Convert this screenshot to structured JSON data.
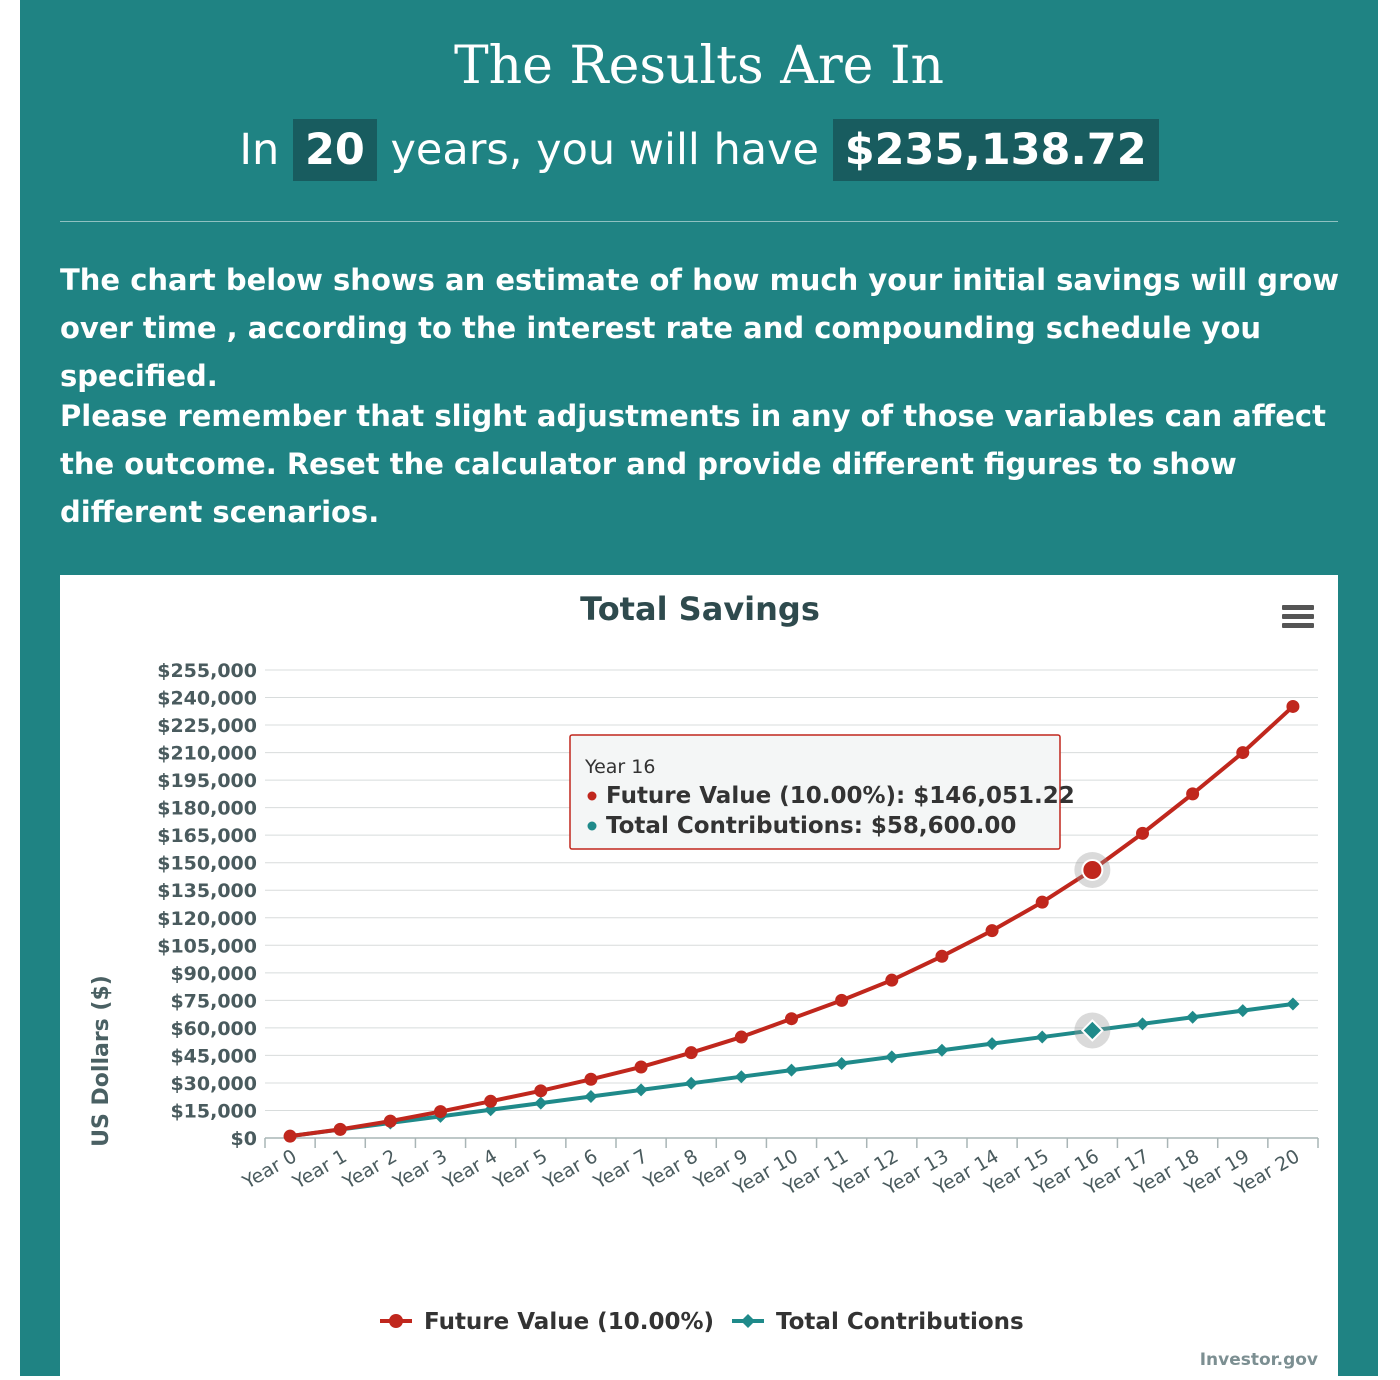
{
  "header": {
    "title": "The Results Are In",
    "subtitle_prefix": "In",
    "years": "20",
    "subtitle_middle": "years, you will have",
    "amount": "$235,138.72"
  },
  "paragraphs": [
    "The chart below shows an estimate of how much your initial savings will grow over time , according to the interest rate and compounding schedule you specified.",
    "Please remember that slight adjustments in any of those variables can affect the outcome. Reset the calculator and provide different figures to show different scenarios."
  ],
  "menu_icon": "hamburger-menu-icon",
  "credit": "Investor.gov",
  "colors": {
    "panel": "#1f8383",
    "highlight": "#185c5f",
    "future_value": "#c0271d",
    "contributions": "#1f8a8a"
  },
  "tooltip": {
    "title": "Year 16",
    "lines": [
      "Future Value (10.00%): $146,051.22",
      "Total Contributions: $58,600.00"
    ]
  },
  "chart_data": {
    "type": "line",
    "title": "Total Savings",
    "xlabel": "",
    "ylabel": "US Dollars ($)",
    "ylim": [
      0,
      255000
    ],
    "yticks": [
      0,
      15000,
      30000,
      45000,
      60000,
      75000,
      90000,
      105000,
      120000,
      135000,
      150000,
      165000,
      180000,
      195000,
      210000,
      225000,
      240000,
      255000
    ],
    "ytick_labels": [
      "$0",
      "$15,000",
      "$30,000",
      "$45,000",
      "$60,000",
      "$75,000",
      "$90,000",
      "$105,000",
      "$120,000",
      "$135,000",
      "$150,000",
      "$165,000",
      "$180,000",
      "$195,000",
      "$210,000",
      "$225,000",
      "$240,000",
      "$255,000"
    ],
    "categories": [
      "Year 0",
      "Year 1",
      "Year 2",
      "Year 3",
      "Year 4",
      "Year 5",
      "Year 6",
      "Year 7",
      "Year 8",
      "Year 9",
      "Year 10",
      "Year 11",
      "Year 12",
      "Year 13",
      "Year 14",
      "Year 15",
      "Year 16",
      "Year 17",
      "Year 18",
      "Year 19",
      "Year 20"
    ],
    "series": [
      {
        "name": "Future Value (10.00%)",
        "color": "#c0271d",
        "marker": "circle",
        "values": [
          1000,
          4700,
          9200,
          14400,
          20000,
          25700,
          32000,
          38700,
          46500,
          55000,
          65000,
          75000,
          86000,
          99000,
          113000,
          128500,
          146051,
          166000,
          187500,
          210000,
          235139
        ]
      },
      {
        "name": "Total Contributions",
        "color": "#1f8a8a",
        "marker": "diamond",
        "values": [
          1000,
          4600,
          8200,
          11800,
          15400,
          19000,
          22600,
          26200,
          29800,
          33400,
          37000,
          40600,
          44200,
          47800,
          51400,
          55000,
          58600,
          62200,
          65800,
          69400,
          73000
        ]
      }
    ],
    "highlighted_index": 16,
    "legend_position": "bottom-center",
    "grid": true
  }
}
